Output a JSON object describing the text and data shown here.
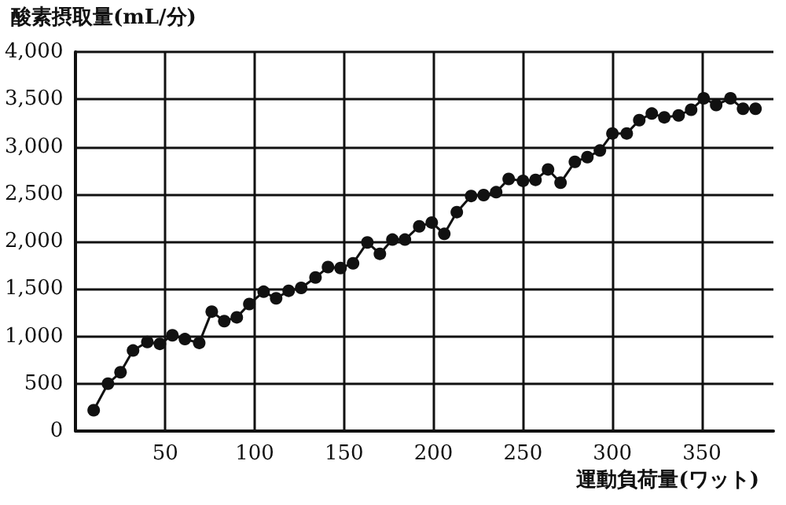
{
  "chart_data": {
    "type": "line",
    "ylabel": "酸素摂取量(mL/分)",
    "xlabel": "運動負荷量(ワット)",
    "x": [
      10,
      18,
      25,
      32,
      40,
      47,
      54,
      61,
      69,
      76,
      83,
      90,
      97,
      105,
      112,
      119,
      126,
      134,
      141,
      148,
      155,
      163,
      170,
      177,
      184,
      192,
      199,
      206,
      213,
      221,
      228,
      235,
      242,
      250,
      257,
      264,
      271,
      279,
      286,
      293,
      300,
      308,
      315,
      322,
      329,
      337,
      344,
      351,
      358,
      366,
      373,
      380
    ],
    "series": [
      {
        "color": "#111111",
        "values": [
          220,
          500,
          620,
          850,
          940,
          920,
          1010,
          970,
          930,
          1260,
          1160,
          1200,
          1340,
          1470,
          1400,
          1480,
          1510,
          1620,
          1730,
          1720,
          1770,
          1990,
          1870,
          2020,
          2020,
          2160,
          2200,
          2080,
          2310,
          2480,
          2490,
          2520,
          2660,
          2640,
          2650,
          2760,
          2620,
          2840,
          2890,
          2960,
          3140,
          3140,
          3280,
          3350,
          3310,
          3330,
          3390,
          3510,
          3440,
          3510,
          3400,
          3400
        ]
      }
    ],
    "xlim": [
      0,
      390
    ],
    "xticks": [
      50,
      100,
      150,
      200,
      250,
      300,
      350
    ],
    "ylim": [
      0,
      4000
    ],
    "yticks": [
      0,
      500,
      {
        "value": 1000,
        "label": "1,000"
      },
      {
        "value": 1500,
        "label": "1,500"
      },
      {
        "value": 2000,
        "label": "2,000"
      },
      {
        "value": 2500,
        "label": "2,500"
      },
      {
        "value": 3000,
        "label": "3,000"
      },
      {
        "value": 3500,
        "label": "3,500"
      },
      {
        "value": 4000,
        "label": "4,000"
      }
    ],
    "grid": true,
    "marker": "circle",
    "line_style": "solid"
  }
}
